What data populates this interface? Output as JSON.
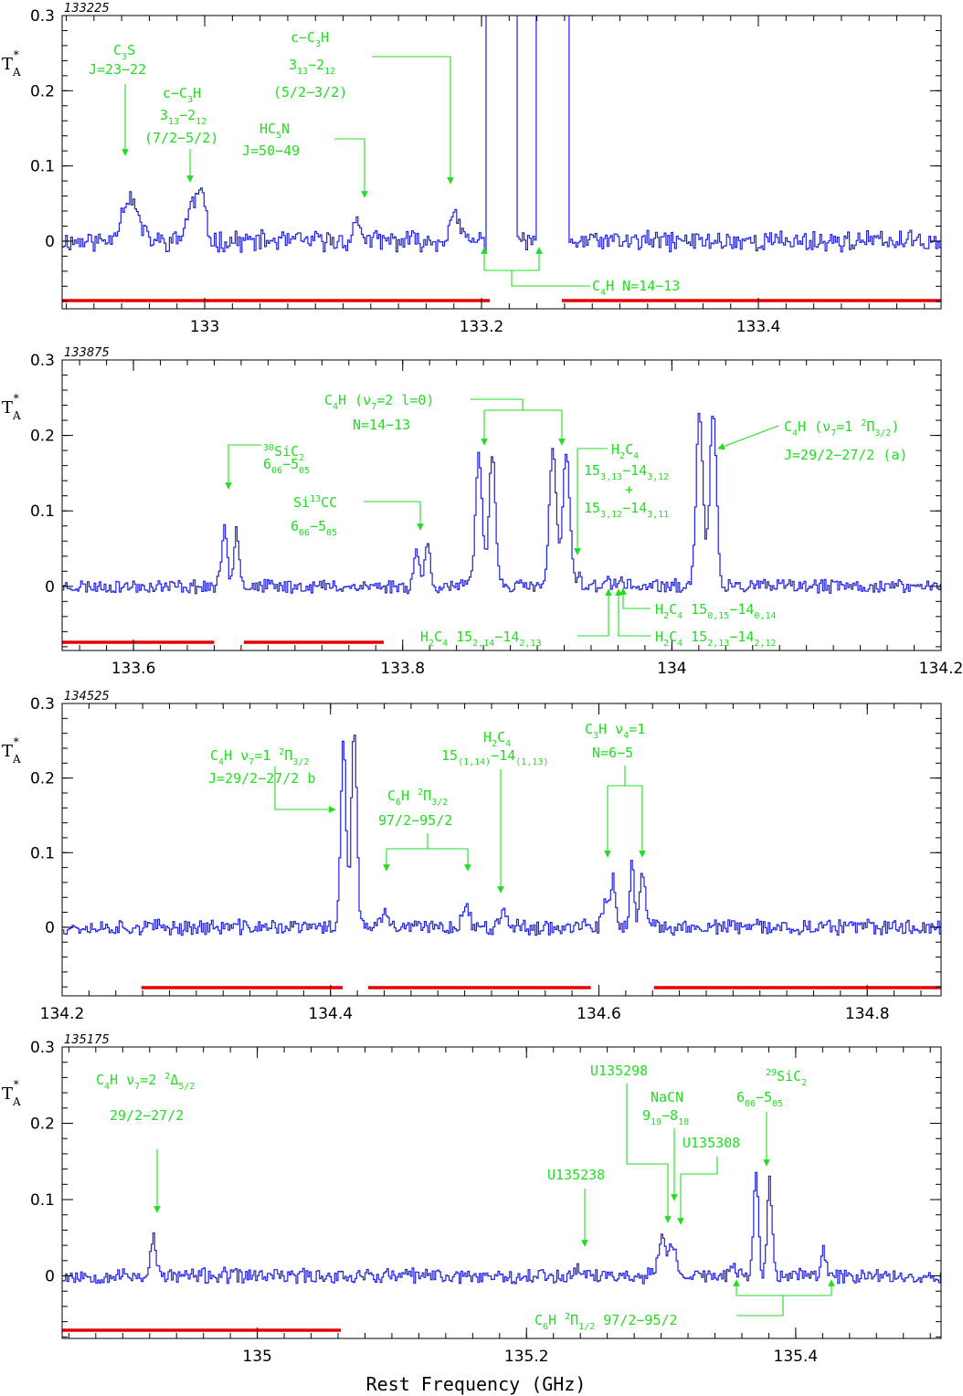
{
  "chart_data": [
    {
      "type": "line",
      "panel_label": "133225",
      "xlim": [
        132.897,
        133.532
      ],
      "ylim": [
        -0.09,
        0.3
      ],
      "xticks": [
        133,
        133.2,
        133.4
      ],
      "xtick_labels": [
        "133",
        "133.2",
        "133.4"
      ],
      "yticks": [
        0,
        0.1,
        0.2,
        0.3
      ],
      "ytick_labels": [
        "0",
        "0.1",
        "0.2",
        "0.3"
      ],
      "red_bars": [
        [
          132.897,
          133.206
        ],
        [
          133.258,
          133.532
        ]
      ],
      "features": [
        {
          "x": 132.945,
          "y": 0.058,
          "w": 0.006
        },
        {
          "x": 132.99,
          "y": 0.045,
          "w": 0.004
        },
        {
          "x": 132.997,
          "y": 0.055,
          "w": 0.003
        },
        {
          "x": 133.11,
          "y": 0.025,
          "w": 0.003
        },
        {
          "x": 133.18,
          "y": 0.03,
          "w": 0.004
        }
      ],
      "saturated": [
        {
          "x": 133.214,
          "w": 0.011
        },
        {
          "x": 133.251,
          "w": 0.012
        }
      ],
      "noise": 0.012,
      "seed": 11
    },
    {
      "type": "line",
      "panel_label": "133875",
      "xlim": [
        133.547,
        134.2
      ],
      "ylim": [
        -0.085,
        0.3
      ],
      "xticks": [
        133.6,
        133.8,
        134,
        134.2
      ],
      "xtick_labels": [
        "133.6",
        "133.8",
        "134",
        "134.2"
      ],
      "yticks": [
        0,
        0.1,
        0.2,
        0.3
      ],
      "ytick_labels": [
        "0",
        "0.1",
        "0.2",
        "0.3"
      ],
      "red_bars": [
        [
          133.547,
          133.66
        ],
        [
          133.682,
          133.786
        ]
      ],
      "features": [
        {
          "x": 133.667,
          "y": 0.08,
          "w": 0.002
        },
        {
          "x": 133.676,
          "y": 0.078,
          "w": 0.002
        },
        {
          "x": 133.81,
          "y": 0.05,
          "w": 0.002
        },
        {
          "x": 133.818,
          "y": 0.055,
          "w": 0.002
        },
        {
          "x": 133.856,
          "y": 0.17,
          "w": 0.0025
        },
        {
          "x": 133.866,
          "y": 0.175,
          "w": 0.0025
        },
        {
          "x": 133.911,
          "y": 0.185,
          "w": 0.0025
        },
        {
          "x": 133.921,
          "y": 0.18,
          "w": 0.0025
        },
        {
          "x": 133.93,
          "y": 0.015,
          "w": 0.002
        },
        {
          "x": 133.95,
          "y": 0.01,
          "w": 0.002
        },
        {
          "x": 133.962,
          "y": 0.01,
          "w": 0.002
        },
        {
          "x": 134.02,
          "y": 0.232,
          "w": 0.0025
        },
        {
          "x": 134.03,
          "y": 0.228,
          "w": 0.0025
        }
      ],
      "saturated": [],
      "noise": 0.008,
      "seed": 23
    },
    {
      "type": "line",
      "panel_label": "134525",
      "xlim": [
        134.2,
        134.855
      ],
      "ylim": [
        -0.092,
        0.3
      ],
      "xticks": [
        134.2,
        134.4,
        134.6,
        134.8
      ],
      "xtick_labels": [
        "134.2",
        "134.4",
        "134.6",
        "134.8"
      ],
      "yticks": [
        0,
        0.1,
        0.2,
        0.3
      ],
      "ytick_labels": [
        "0",
        "0.1",
        "0.2",
        "0.3"
      ],
      "red_bars": [
        [
          134.259,
          134.409
        ],
        [
          134.428,
          134.594
        ],
        [
          134.641,
          134.855
        ]
      ],
      "features": [
        {
          "x": 134.409,
          "y": 0.25,
          "w": 0.002
        },
        {
          "x": 134.417,
          "y": 0.27,
          "w": 0.002
        },
        {
          "x": 134.44,
          "y": 0.025,
          "w": 0.002
        },
        {
          "x": 134.5,
          "y": 0.025,
          "w": 0.003
        },
        {
          "x": 134.528,
          "y": 0.025,
          "w": 0.003
        },
        {
          "x": 134.604,
          "y": 0.03,
          "w": 0.002
        },
        {
          "x": 134.61,
          "y": 0.065,
          "w": 0.002
        },
        {
          "x": 134.624,
          "y": 0.09,
          "w": 0.0015
        },
        {
          "x": 134.632,
          "y": 0.07,
          "w": 0.002
        }
      ],
      "saturated": [],
      "noise": 0.009,
      "seed": 37
    },
    {
      "type": "line",
      "panel_label": "135175",
      "xlim": [
        134.855,
        135.508
      ],
      "ylim": [
        -0.082,
        0.3
      ],
      "xticks": [
        135,
        135.2,
        135.4
      ],
      "xtick_labels": [
        "135",
        "135.2",
        "135.4"
      ],
      "yticks": [
        0,
        0.1,
        0.2,
        0.3
      ],
      "ytick_labels": [
        "0",
        "0.1",
        "0.2",
        "0.3"
      ],
      "red_bars": [
        [
          134.855,
          135.062
        ]
      ],
      "features": [
        {
          "x": 134.922,
          "y": 0.05,
          "w": 0.002
        },
        {
          "x": 135.238,
          "y": 0.015,
          "w": 0.002
        },
        {
          "x": 135.3,
          "y": 0.045,
          "w": 0.003
        },
        {
          "x": 135.308,
          "y": 0.035,
          "w": 0.003
        },
        {
          "x": 135.353,
          "y": 0.01,
          "w": 0.003
        },
        {
          "x": 135.37,
          "y": 0.13,
          "w": 0.0018
        },
        {
          "x": 135.38,
          "y": 0.125,
          "w": 0.0018
        },
        {
          "x": 135.42,
          "y": 0.035,
          "w": 0.0018
        }
      ],
      "saturated": [],
      "noise": 0.009,
      "seed": 53
    }
  ],
  "axis": {
    "ylabel": "T",
    "ylabel_sub": "A",
    "ylabel_sup": "*",
    "xlabel": "Rest Frequency (GHz)"
  },
  "annotations": {
    "p0": {
      "c3s_1": "C",
      "c3s_2": "3",
      "c3s_3": "S",
      "c3s_j": "J=23−22",
      "cc3h_a1": "c−C",
      "cc3h_a2": "3",
      "cc3h_a3": "H",
      "cc3h_b1": "3",
      "cc3h_b2": "13",
      "cc3h_b3": "−2",
      "cc3h_b4": "12",
      "cc3h_c": "(7/2−5/2)",
      "hc5n_1": "HC",
      "hc5n_2": "5",
      "hc5n_3": "N",
      "hc5n_j": "J=50−49",
      "cc3h2_a1": "c−C",
      "cc3h2_a2": "3",
      "cc3h2_a3": "H",
      "cc3h2_b1": "3",
      "cc3h2_b2": "13",
      "cc3h2_b3": "−2",
      "cc3h2_b4": "12",
      "cc3h2_c": "(5/2−3/2)",
      "c4h_1": "C",
      "c4h_2": "4",
      "c4h_3": "H  N=14−13"
    },
    "p1": {
      "sic_1": "30",
      "sic_2": "SiC",
      "sic_3": "2",
      "sic_b1": "6",
      "sic_b2": "06",
      "sic_b3": "−5",
      "sic_b4": "05",
      "si13_1": "Si",
      "si13_2": "13",
      "si13_3": "CC",
      "si13_b1": "6",
      "si13_b2": "06",
      "si13_b3": "−5",
      "si13_b4": "05",
      "c4hv_1": "C",
      "c4hv_2": "4",
      "c4hv_3": "H (ν",
      "c4hv_4": "7",
      "c4hv_5": "=2 l=0)",
      "c4hv_n": "N=14−13",
      "h2c4_1": "H",
      "h2c4_2": "2",
      "h2c4_3": "C",
      "h2c4_4": "4",
      "h2c4_b1": "15",
      "h2c4_b2": "3,13",
      "h2c4_b3": "−14",
      "h2c4_b4": "3,12",
      "h2c4_plus": "+",
      "h2c4_c1": "15",
      "h2c4_c2": "3,12",
      "h2c4_c3": "−14",
      "h2c4_c4": "3,11",
      "c4h1_1": "C",
      "c4h1_2": "4",
      "c4h1_3": "H (ν",
      "c4h1_4": "7",
      "c4h1_5": "=1 ",
      "c4h1_6": "2",
      "c4h1_7": "Π",
      "c4h1_8": "3/2",
      "c4h1_9": ")",
      "c4h1_j": "J=29/2−27/2 (a)",
      "h2c4a_1": "H",
      "h2c4a_2": "2",
      "h2c4a_3": "C",
      "h2c4a_4": "4",
      "h2c4a_5": " 15",
      "h2c4a_6": "0,15",
      "h2c4a_7": "−14",
      "h2c4a_8": "0,14",
      "h2c4b_1": "H",
      "h2c4b_2": "2",
      "h2c4b_3": "C",
      "h2c4b_4": "4",
      "h2c4b_5": " 15",
      "h2c4b_6": "2,14",
      "h2c4b_7": "−14",
      "h2c4b_8": "2,13",
      "h2c4c_1": "H",
      "h2c4c_2": "2",
      "h2c4c_3": "C",
      "h2c4c_4": "4",
      "h2c4c_5": " 15",
      "h2c4c_6": "2,13",
      "h2c4c_7": "−14",
      "h2c4c_8": "2,12"
    },
    "p2": {
      "c4h_1": "C",
      "c4h_2": "4",
      "c4h_3": "H ν",
      "c4h_4": "7",
      "c4h_5": "=1 ",
      "c4h_6": "2",
      "c4h_7": "Π",
      "c4h_8": "3/2",
      "c4h_j": "J=29/2−27/2 b",
      "c6h_1": "C",
      "c6h_2": "6",
      "c6h_3": "H ",
      "c6h_4": "2",
      "c6h_5": "Π",
      "c6h_6": "3/2",
      "c6h_j": "97/2−95/2",
      "h2c4_1": "H",
      "h2c4_2": "2",
      "h2c4_3": "C",
      "h2c4_4": "4",
      "h2c4_b1": "15",
      "h2c4_b2": "(1,14)",
      "h2c4_b3": "−14",
      "h2c4_b4": "(1,13)",
      "c3h_1": "C",
      "c3h_2": "3",
      "c3h_3": "H ν",
      "c3h_4": "4",
      "c3h_5": "=1",
      "c3h_n": "N=6−5"
    },
    "p3": {
      "c4h_1": "C",
      "c4h_2": "4",
      "c4h_3": "H ν",
      "c4h_4": "7",
      "c4h_5": "=2 ",
      "c4h_6": "2",
      "c4h_7": "Δ",
      "c4h_8": "5/2",
      "c4h_j": "29/2−27/2",
      "u1": "U135298",
      "nacn_1": "NaCN",
      "nacn_b1": "9",
      "nacn_b2": "19",
      "nacn_b3": "−8",
      "nacn_b4": "18",
      "u2": "U135308",
      "u3": "U135238",
      "sic_1": "29",
      "sic_2": "SiC",
      "sic_3": "2",
      "sic_b1": "6",
      "sic_b2": "06",
      "sic_b3": "−5",
      "sic_b4": "05",
      "c6h_1": "C",
      "c6h_2": "6",
      "c6h_3": "H ",
      "c6h_4": "2",
      "c6h_5": "Π",
      "c6h_6": "1/2",
      "c6h_7": " 97/2−95/2"
    }
  }
}
